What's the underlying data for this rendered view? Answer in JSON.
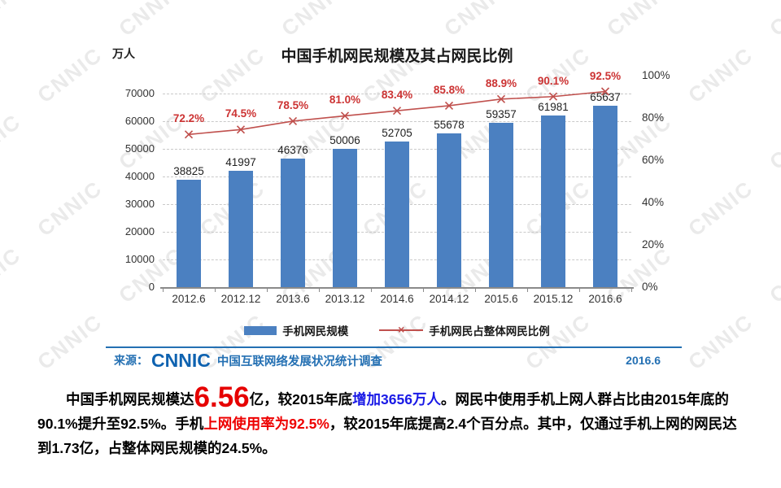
{
  "watermark": {
    "text": "CNNIC"
  },
  "chart": {
    "title": "中国手机网民规模及其占网民比例",
    "unit_label": "万人",
    "legend": {
      "line_marker_glyph": "×"
    },
    "source_bar": {
      "prefix": "来源：",
      "logo": "CNNIC",
      "survey": "中国互联网络发展状况统计调查",
      "date": "2016.6"
    }
  },
  "chart_data": {
    "type": "combo",
    "categories": [
      "2012.6",
      "2012.12",
      "2013.6",
      "2013.12",
      "2014.6",
      "2014.12",
      "2015.6",
      "2015.12",
      "2016.6"
    ],
    "series": [
      {
        "name": "手机网民规模",
        "type": "bar",
        "axis": "left",
        "values": [
          38825,
          41997,
          46376,
          50006,
          52705,
          55678,
          59357,
          61981,
          65637
        ]
      },
      {
        "name": "手机网民占整体网民比例",
        "type": "line",
        "axis": "right",
        "marker": "x",
        "values": [
          72.2,
          74.5,
          78.5,
          81.0,
          83.4,
          85.8,
          88.9,
          90.1,
          92.5
        ]
      }
    ],
    "title": "中国手机网民规模及其占网民比例",
    "xlabel": "",
    "ylabel_left": "万人",
    "left_axis": {
      "min": 0,
      "max": 70000,
      "tick": 10000
    },
    "right_axis": {
      "min": 0,
      "max": 100,
      "tick": 20,
      "unit": "%"
    },
    "grid": "horizontal-dashed",
    "legend_position": "bottom",
    "data_labels": true
  },
  "summary": {
    "seg1": "中国手机网民规模达",
    "seg2": "6.56",
    "seg3": "亿，较2015年底",
    "seg4": "增加3656万人",
    "seg5": "。网民中使用手机上网人群占比由2015年底的90.1%提升至92.5%。手机",
    "seg6": "上网使用率为92.5%",
    "seg7": "，较2015年底提高2.4个百分点。其中，仅通过手机上网的网民达到1.73亿，占整体网民规模的24.5%。"
  },
  "colors": {
    "bar": "#4b80c1",
    "line": "#c0504d",
    "percent_label": "#cc3333",
    "value_label": "#1f1f1f",
    "source_blue": "#2470b3",
    "logo_blue": "#0e62b0",
    "big_number_red": "#e60000",
    "highlight_blue": "#1a1ae6",
    "highlight_red": "#ee0000"
  }
}
